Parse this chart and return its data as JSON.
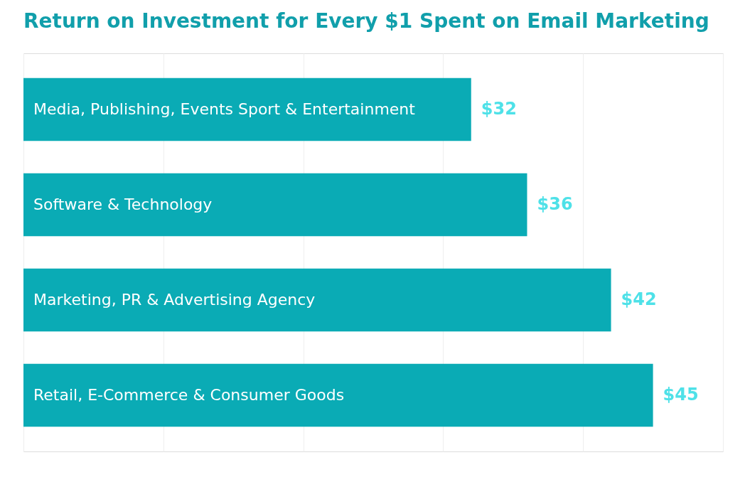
{
  "chart_data": {
    "type": "bar",
    "orientation": "horizontal",
    "title": "Return on Investment for Every $1 Spent on Email Marketing",
    "categories": [
      "Media, Publishing, Events Sport & Entertainment",
      "Software & Technology",
      "Marketing, PR & Advertising Agency",
      "Retail, E-Commerce & Consumer Goods"
    ],
    "values": [
      32,
      36,
      42,
      45
    ],
    "value_labels": [
      "$32",
      "$36",
      "$42",
      "$45"
    ],
    "color": "#0aabb5",
    "xlim": [
      0,
      50
    ],
    "xticks": [
      {
        "value": 0,
        "label": null
      },
      {
        "value": 10,
        "label": null
      },
      {
        "value": 20,
        "label": null
      },
      {
        "value": 30,
        "label": null
      },
      {
        "value": 40,
        "label": null
      },
      {
        "value": 50,
        "label": null
      }
    ],
    "grid": "x",
    "tick_labels": false
  }
}
